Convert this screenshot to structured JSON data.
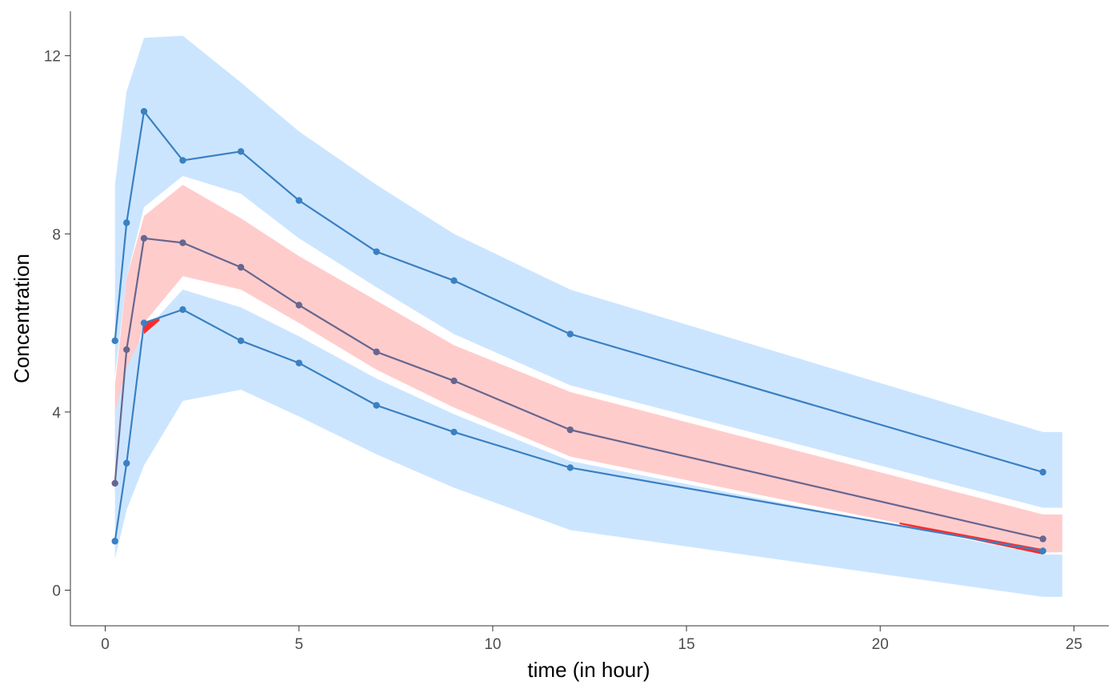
{
  "chart_data": {
    "type": "line",
    "title": "",
    "xlabel": "time (in hour)",
    "ylabel": "Concentration",
    "xlim": [
      -0.9,
      25.9
    ],
    "ylim": [
      -0.8,
      13.0
    ],
    "xticks": [
      0,
      5,
      10,
      15,
      20,
      25
    ],
    "yticks": [
      0,
      4,
      8,
      12
    ],
    "grid": false,
    "legend": "none",
    "colors": {
      "outer_band": "#cce5ff",
      "median_band": "#ffcccc",
      "outlier_fill": "#ff2b2b",
      "percentile_line": "#3a80c2",
      "median_line": "#66668f"
    },
    "bands": [
      {
        "role": "upper-percentile-ci",
        "color": "#cce5ff",
        "x": [
          0.25,
          0.55,
          1.0,
          2.0,
          3.5,
          5.0,
          7.0,
          9.0,
          12.0,
          24.2,
          24.7
        ],
        "lower": [
          4.8,
          7.0,
          8.6,
          9.3,
          8.9,
          7.9,
          6.8,
          5.75,
          4.6,
          1.85,
          1.85
        ],
        "upper": [
          9.1,
          11.2,
          12.4,
          12.45,
          11.4,
          10.3,
          9.1,
          8.0,
          6.75,
          3.55,
          3.55
        ]
      },
      {
        "role": "median-ci",
        "color": "#ffcccc",
        "x": [
          0.25,
          0.55,
          1.0,
          2.0,
          3.5,
          5.0,
          7.0,
          9.0,
          12.0,
          24.2,
          24.7
        ],
        "lower": [
          2.2,
          4.5,
          6.0,
          7.05,
          6.75,
          6.0,
          4.95,
          4.1,
          3.0,
          0.85,
          0.85
        ],
        "upper": [
          4.6,
          7.0,
          8.4,
          9.1,
          8.35,
          7.5,
          6.5,
          5.5,
          4.45,
          1.7,
          1.7
        ]
      },
      {
        "role": "lower-percentile-ci",
        "color": "#cce5ff",
        "x": [
          0.25,
          0.55,
          1.0,
          2.0,
          3.5,
          5.0,
          7.0,
          9.0,
          12.0,
          24.2,
          24.7
        ],
        "lower": [
          0.7,
          1.8,
          2.8,
          4.25,
          4.5,
          3.9,
          3.05,
          2.3,
          1.35,
          -0.15,
          -0.15
        ],
        "upper": [
          4.0,
          5.0,
          5.8,
          6.75,
          6.35,
          5.7,
          4.75,
          3.95,
          2.9,
          0.8,
          0.8
        ]
      }
    ],
    "outlier_regions": [
      {
        "x": [
          1.0,
          1.4
        ],
        "lower": [
          5.75,
          6.05
        ],
        "upper": [
          6.0,
          6.1
        ]
      },
      {
        "x": [
          20.5,
          24.2
        ],
        "lower": [
          1.48,
          0.8
        ],
        "upper": [
          1.52,
          0.92
        ]
      }
    ],
    "series": [
      {
        "name": "",
        "role": "upper-percentile",
        "color": "#3a80c2",
        "x": [
          0.25,
          0.55,
          1.0,
          2.0,
          3.5,
          5.0,
          7.0,
          9.0,
          12.0,
          24.2
        ],
        "y": [
          5.6,
          8.25,
          10.75,
          9.65,
          9.85,
          8.75,
          7.6,
          6.95,
          5.75,
          2.65
        ]
      },
      {
        "name": "",
        "role": "median",
        "color": "#66668f",
        "x": [
          0.25,
          0.55,
          1.0,
          2.0,
          3.5,
          5.0,
          7.0,
          9.0,
          12.0,
          24.2
        ],
        "y": [
          2.4,
          5.4,
          7.9,
          7.8,
          7.25,
          6.4,
          5.35,
          4.7,
          3.6,
          1.15
        ]
      },
      {
        "name": "",
        "role": "lower-percentile",
        "color": "#3a80c2",
        "x": [
          0.25,
          0.55,
          1.0,
          2.0,
          3.5,
          5.0,
          7.0,
          9.0,
          12.0,
          24.2
        ],
        "y": [
          1.1,
          2.85,
          6.0,
          6.3,
          5.6,
          5.1,
          4.15,
          3.55,
          2.75,
          0.88
        ]
      }
    ]
  }
}
